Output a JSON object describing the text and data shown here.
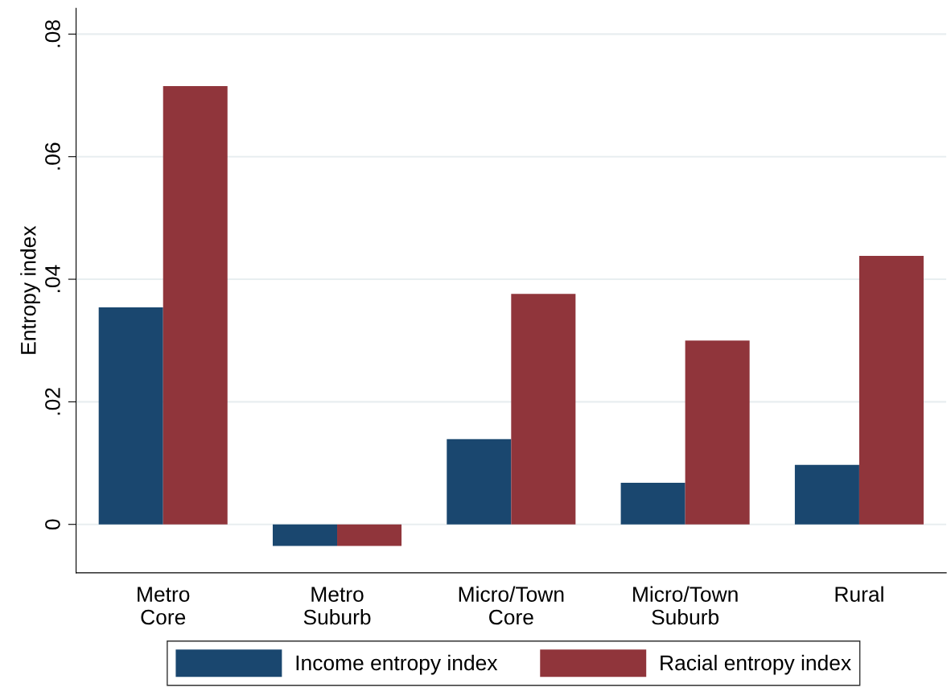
{
  "chart_data": {
    "type": "bar",
    "ylabel": "Entropy index",
    "categories": [
      "Metro\nCore",
      "Metro\nSuburb",
      "Micro/Town\nCore",
      "Micro/Town\nSuburb",
      "Rural"
    ],
    "series": [
      {
        "name": "Income entropy index",
        "color": "#1a476f",
        "values": [
          0.0354,
          -0.0035,
          0.0139,
          0.0068,
          0.0097
        ]
      },
      {
        "name": "Racial entropy index",
        "color": "#90353b",
        "values": [
          0.0715,
          -0.0035,
          0.0376,
          0.03,
          0.0438
        ]
      }
    ],
    "ylim": [
      -0.0079,
      0.0842
    ],
    "yticks": [
      {
        "value": 0,
        "label": "0"
      },
      {
        "value": 0.02,
        "label": ".02"
      },
      {
        "value": 0.04,
        "label": ".04"
      },
      {
        "value": 0.06,
        "label": ".06"
      },
      {
        "value": 0.08,
        "label": ".08"
      }
    ],
    "grid": "y",
    "legend": "bottom"
  }
}
